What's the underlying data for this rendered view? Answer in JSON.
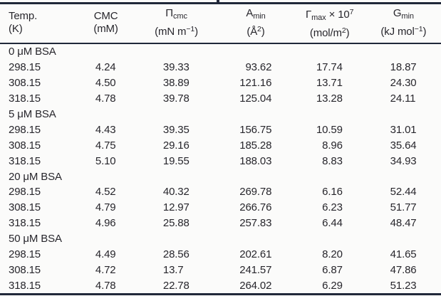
{
  "page": {
    "background": "#fbfbfa",
    "rule_color": "#202839",
    "text_color": "#27262c"
  },
  "table": {
    "columns": [
      {
        "key": "temp",
        "line1": [
          {
            "t": "Temp."
          }
        ],
        "line2": [
          {
            "t": "(K)"
          }
        ]
      },
      {
        "key": "cmc",
        "line1": [
          {
            "t": "CMC"
          }
        ],
        "line2": [
          {
            "t": "(mM)"
          }
        ]
      },
      {
        "key": "pi-cmc",
        "line1": [
          {
            "t": "Π"
          },
          {
            "t": "cmc",
            "s": "sub"
          }
        ],
        "line2": [
          {
            "t": "(mN m"
          },
          {
            "t": "−1",
            "s": "sup"
          },
          {
            "t": ")"
          }
        ]
      },
      {
        "key": "a-min",
        "line1": [
          {
            "t": "A"
          },
          {
            "t": "min",
            "s": "sub"
          }
        ],
        "line2": [
          {
            "t": "(Å"
          },
          {
            "t": "2",
            "s": "sup"
          },
          {
            "t": ")"
          }
        ]
      },
      {
        "key": "gamma-max",
        "line1": [
          {
            "t": "Γ"
          },
          {
            "t": "max",
            "s": "sub"
          },
          {
            "t": " × 10"
          },
          {
            "t": "7",
            "s": "sup"
          }
        ],
        "line2": [
          {
            "t": "(mol/m"
          },
          {
            "t": "2",
            "s": "sup"
          },
          {
            "t": ")"
          }
        ]
      },
      {
        "key": "g-min",
        "line1": [
          {
            "t": "G"
          },
          {
            "t": "min",
            "s": "sub"
          }
        ],
        "line2": [
          {
            "t": "(kJ mol"
          },
          {
            "t": "−1",
            "s": "sup"
          },
          {
            "t": ")"
          }
        ]
      }
    ],
    "groups": [
      {
        "title": "0 μM BSA",
        "rows": [
          [
            "298.15",
            "4.24",
            "39.33",
            "93.62",
            "17.74",
            "18.87"
          ],
          [
            "308.15",
            "4.50",
            "38.89",
            "121.16",
            "13.71",
            "24.30"
          ],
          [
            "318.15",
            "4.78",
            "39.78",
            "125.04",
            "13.28",
            "24.11"
          ]
        ]
      },
      {
        "title": "5 μM BSA",
        "rows": [
          [
            "298.15",
            "4.43",
            "39.35",
            "156.75",
            "10.59",
            "31.01"
          ],
          [
            "308.15",
            "4.75",
            "29.16",
            "185.28",
            "8.96",
            "35.64"
          ],
          [
            "318.15",
            "5.10",
            "19.55",
            "188.03",
            "8.83",
            "34.93"
          ]
        ]
      },
      {
        "title": "20 μM BSA",
        "rows": [
          [
            "298.15",
            "4.52",
            "40.32",
            "269.78",
            "6.16",
            "52.44"
          ],
          [
            "308.15",
            "4.79",
            "12.97",
            "266.76",
            "6.23",
            "51.77"
          ],
          [
            "318.15",
            "4.96",
            "25.88",
            "257.83",
            "6.44",
            "48.47"
          ]
        ]
      },
      {
        "title": "50 μM BSA",
        "rows": [
          [
            "298.15",
            "4.49",
            "28.56",
            "202.61",
            "8.20",
            "41.65"
          ],
          [
            "308.15",
            "4.72",
            "13.7",
            "241.57",
            "6.87",
            "47.86"
          ],
          [
            "318.15",
            "4.78",
            "22.78",
            "264.02",
            "6.29",
            "51.23"
          ]
        ]
      }
    ]
  }
}
